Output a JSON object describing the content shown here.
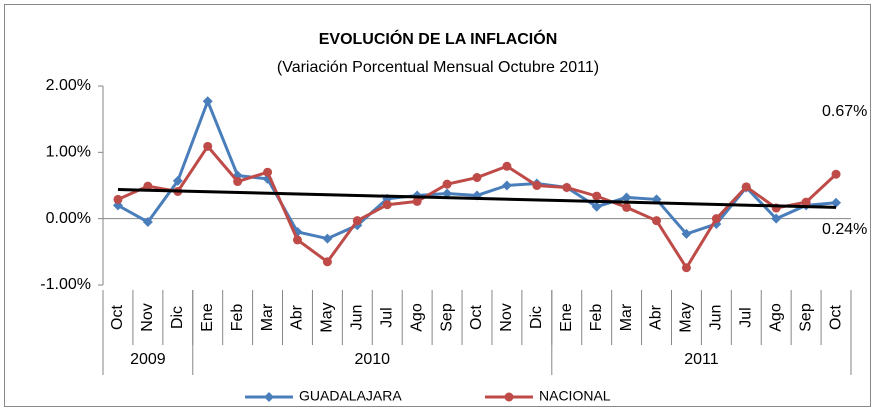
{
  "chart_data": {
    "type": "line",
    "title": "EVOLUCIÓN DE LA INFLACIÓN",
    "subtitle": "(Variación Porcentual Mensual Octubre 2011)",
    "categories": [
      "Oct",
      "Nov",
      "Dic",
      "Ene",
      "Feb",
      "Mar",
      "Abr",
      "May",
      "Jun",
      "Jul",
      "Ago",
      "Sep",
      "Oct",
      "Nov",
      "Dic",
      "Ene",
      "Feb",
      "Mar",
      "Abr",
      "May",
      "Jun",
      "Jul",
      "Ago",
      "Sep",
      "Oct"
    ],
    "groups": [
      {
        "label": "2009",
        "span": 3
      },
      {
        "label": "2010",
        "span": 12
      },
      {
        "label": "2011",
        "span": 10
      }
    ],
    "series": [
      {
        "name": "GUADALAJARA",
        "color": "#4a7ebb",
        "marker": "diamond",
        "values": [
          0.2,
          -0.05,
          0.57,
          1.77,
          0.65,
          0.6,
          -0.2,
          -0.3,
          -0.1,
          0.3,
          0.35,
          0.38,
          0.35,
          0.5,
          0.53,
          0.47,
          0.18,
          0.32,
          0.29,
          -0.23,
          -0.08,
          0.47,
          0.0,
          0.2,
          0.24
        ]
      },
      {
        "name": "NACIONAL",
        "color": "#be4b48",
        "marker": "circle",
        "values": [
          0.29,
          0.49,
          0.41,
          1.09,
          0.56,
          0.7,
          -0.32,
          -0.65,
          -0.03,
          0.21,
          0.26,
          0.52,
          0.62,
          0.79,
          0.5,
          0.47,
          0.34,
          0.17,
          -0.03,
          -0.74,
          0.0,
          0.48,
          0.16,
          0.25,
          0.67
        ]
      }
    ],
    "trendline": {
      "color": "#000000",
      "values": [
        0.44,
        0.17
      ]
    },
    "annotations": [
      "0.67%",
      "0.24%"
    ],
    "ylim": [
      -1,
      2
    ],
    "yticks": [
      {
        "value": -1,
        "label": "-1.00%"
      },
      {
        "value": 0,
        "label": "0.00%"
      },
      {
        "value": 1,
        "label": "1.00%"
      },
      {
        "value": 2,
        "label": "2.00%"
      }
    ],
    "legend": "bottom"
  }
}
